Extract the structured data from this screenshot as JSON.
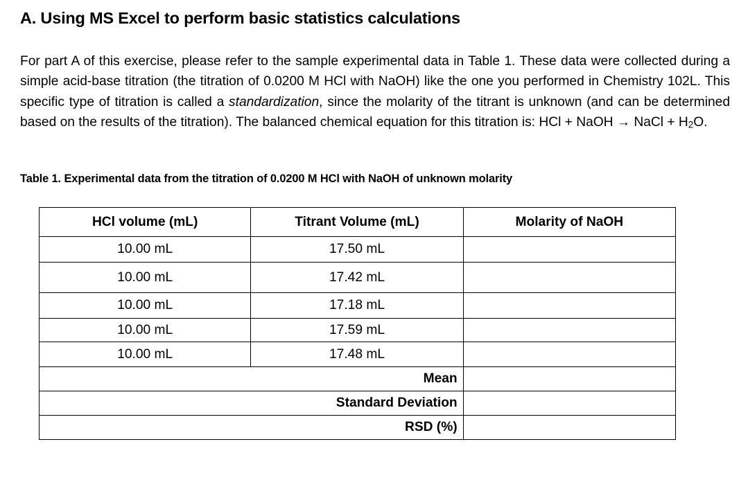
{
  "section": {
    "heading": "A. Using MS Excel to perform basic statistics calculations"
  },
  "intro": {
    "part1": "For part A of this exercise, please refer to the sample experimental data in Table 1. These data were collected during a simple acid-base titration (the titration of 0.0200 M HCl with NaOH) like the one you performed in Chemistry 102L. This specific type of titration is called a ",
    "emphasis": "standardization",
    "part2": ", since the molarity of the titrant is unknown (and can be determined based on the results of the titration). The balanced chemical equation for this titration is: HCl + NaOH → NaCl + H",
    "subscript": "2",
    "part3": "O."
  },
  "table": {
    "caption": "Table 1. Experimental data from the titration of 0.0200 M HCl with NaOH of unknown molarity",
    "headers": [
      "HCl volume (mL)",
      "Titrant Volume (mL)",
      "Molarity of NaOH"
    ],
    "rows": [
      [
        "10.00 mL",
        "17.50 mL",
        ""
      ],
      [
        "10.00 mL",
        "17.42 mL",
        ""
      ],
      [
        "10.00 mL",
        "17.18 mL",
        ""
      ],
      [
        "10.00 mL",
        "17.59 mL",
        ""
      ],
      [
        "10.00 mL",
        "17.48 mL",
        ""
      ]
    ],
    "summary": [
      {
        "label": "Mean",
        "value": ""
      },
      {
        "label": "Standard Deviation",
        "value": ""
      },
      {
        "label": "RSD (%)",
        "value": ""
      }
    ]
  }
}
